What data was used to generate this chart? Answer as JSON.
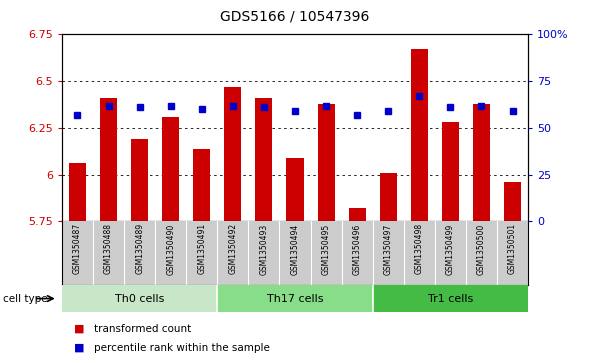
{
  "title": "GDS5166 / 10547396",
  "samples": [
    "GSM1350487",
    "GSM1350488",
    "GSM1350489",
    "GSM1350490",
    "GSM1350491",
    "GSM1350492",
    "GSM1350493",
    "GSM1350494",
    "GSM1350495",
    "GSM1350496",
    "GSM1350497",
    "GSM1350498",
    "GSM1350499",
    "GSM1350500",
    "GSM1350501"
  ],
  "bar_values": [
    6.06,
    6.41,
    6.19,
    6.31,
    6.14,
    6.47,
    6.41,
    6.09,
    6.38,
    5.82,
    6.01,
    6.67,
    6.28,
    6.38,
    5.96
  ],
  "blue_values": [
    57,
    62,
    61,
    62,
    60,
    62,
    61,
    59,
    62,
    57,
    59,
    67,
    61,
    62,
    59
  ],
  "bar_color": "#cc0000",
  "blue_color": "#0000cc",
  "ylim_left": [
    5.75,
    6.75
  ],
  "ylim_right": [
    0,
    100
  ],
  "yticks_left": [
    5.75,
    6.0,
    6.25,
    6.5,
    6.75
  ],
  "yticks_right": [
    0,
    25,
    50,
    75,
    100
  ],
  "ytick_labels_left": [
    "5.75",
    "6",
    "6.25",
    "6.5",
    "6.75"
  ],
  "ytick_labels_right": [
    "0",
    "25",
    "50",
    "75",
    "100%"
  ],
  "grid_values": [
    6.0,
    6.25,
    6.5
  ],
  "cell_groups": [
    {
      "label": "Th0 cells",
      "start": 0,
      "end": 5,
      "color": "#c8e6c8"
    },
    {
      "label": "Th17 cells",
      "start": 5,
      "end": 10,
      "color": "#88dd88"
    },
    {
      "label": "Tr1 cells",
      "start": 10,
      "end": 15,
      "color": "#44bb44"
    }
  ],
  "legend_items": [
    {
      "label": "transformed count",
      "color": "#cc0000"
    },
    {
      "label": "percentile rank within the sample",
      "color": "#0000cc"
    }
  ],
  "cell_type_label": "cell type",
  "grey_bg": "#cccccc",
  "plot_bg_color": "#ffffff",
  "bar_width": 0.55
}
